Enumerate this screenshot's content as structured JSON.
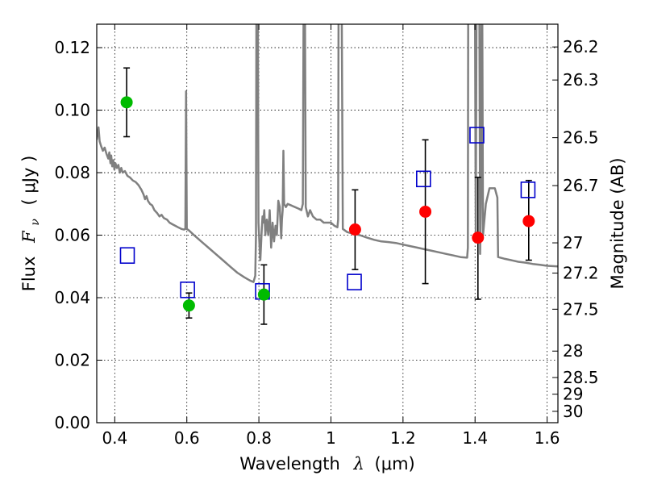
{
  "chart_data": {
    "type": "scatter",
    "title": "",
    "xlabel": "Wavelength  λ (μm)",
    "ylabel": "Flux  F_ν  ( μJy )",
    "ylabel_parts": {
      "prefix": "Flux",
      "symbol": "F",
      "subscript": "ν",
      "unit": "( μJy )"
    },
    "xlabel_parts": {
      "prefix": "Wavelength",
      "symbol": "λ",
      "unit": "(μm)"
    },
    "y2label": "Magnitude (AB)",
    "xlim": [
      0.35,
      1.63
    ],
    "ylim": [
      0.0,
      0.1275
    ],
    "grid": true,
    "x_ticks": [
      {
        "value": 0.4,
        "label": "0.4"
      },
      {
        "value": 0.6,
        "label": "0.6"
      },
      {
        "value": 0.8,
        "label": "0.8"
      },
      {
        "value": 1.0,
        "label": "1"
      },
      {
        "value": 1.2,
        "label": "1.2"
      },
      {
        "value": 1.4,
        "label": "1.4"
      },
      {
        "value": 1.6,
        "label": "1.6"
      }
    ],
    "y_ticks": [
      {
        "value": 0.0,
        "label": "0.00"
      },
      {
        "value": 0.02,
        "label": "0.02"
      },
      {
        "value": 0.04,
        "label": "0.04"
      },
      {
        "value": 0.06,
        "label": "0.06"
      },
      {
        "value": 0.08,
        "label": "0.08"
      },
      {
        "value": 0.1,
        "label": "0.10"
      },
      {
        "value": 0.12,
        "label": "0.12"
      }
    ],
    "y2_ticks": [
      {
        "mag": 26.2,
        "label": "26.2"
      },
      {
        "mag": 26.3,
        "label": "26.3"
      },
      {
        "mag": 26.5,
        "label": "26.5"
      },
      {
        "mag": 26.7,
        "label": "26.7"
      },
      {
        "mag": 27.0,
        "label": "27"
      },
      {
        "mag": 27.2,
        "label": "27.2"
      },
      {
        "mag": 27.5,
        "label": "27.5"
      },
      {
        "mag": 28.0,
        "label": "28"
      },
      {
        "mag": 28.5,
        "label": "28.5"
      },
      {
        "mag": 29.0,
        "label": "29"
      },
      {
        "mag": 30.0,
        "label": "30"
      }
    ],
    "colors": {
      "model": "#808080",
      "green": "#00bb00",
      "red": "#ff0000",
      "blue": "#0000cc",
      "errorbar": "#000000",
      "grid": "#000000"
    },
    "model_spectrum": [
      [
        0.35,
        0.0905
      ],
      [
        0.355,
        0.0945
      ],
      [
        0.358,
        0.09
      ],
      [
        0.362,
        0.0885
      ],
      [
        0.367,
        0.087
      ],
      [
        0.372,
        0.088
      ],
      [
        0.377,
        0.086
      ],
      [
        0.382,
        0.0845
      ],
      [
        0.385,
        0.0865
      ],
      [
        0.388,
        0.083
      ],
      [
        0.39,
        0.0855
      ],
      [
        0.393,
        0.082
      ],
      [
        0.396,
        0.084
      ],
      [
        0.399,
        0.081
      ],
      [
        0.402,
        0.083
      ],
      [
        0.406,
        0.0815
      ],
      [
        0.41,
        0.0825
      ],
      [
        0.414,
        0.08
      ],
      [
        0.418,
        0.0815
      ],
      [
        0.422,
        0.08
      ],
      [
        0.428,
        0.0805
      ],
      [
        0.435,
        0.079
      ],
      [
        0.442,
        0.0785
      ],
      [
        0.45,
        0.0775
      ],
      [
        0.458,
        0.077
      ],
      [
        0.466,
        0.076
      ],
      [
        0.474,
        0.0745
      ],
      [
        0.48,
        0.073
      ],
      [
        0.484,
        0.0715
      ],
      [
        0.488,
        0.0725
      ],
      [
        0.492,
        0.071
      ],
      [
        0.498,
        0.07
      ],
      [
        0.504,
        0.0695
      ],
      [
        0.51,
        0.068
      ],
      [
        0.518,
        0.067
      ],
      [
        0.524,
        0.066
      ],
      [
        0.53,
        0.0665
      ],
      [
        0.536,
        0.0655
      ],
      [
        0.545,
        0.065
      ],
      [
        0.552,
        0.064
      ],
      [
        0.56,
        0.0635
      ],
      [
        0.568,
        0.063
      ],
      [
        0.576,
        0.0625
      ],
      [
        0.585,
        0.062
      ],
      [
        0.592,
        0.0618
      ],
      [
        0.596,
        0.062
      ],
      [
        0.598,
        0.106
      ],
      [
        0.6,
        0.062
      ],
      [
        0.606,
        0.0615
      ],
      [
        0.62,
        0.06
      ],
      [
        0.64,
        0.058
      ],
      [
        0.66,
        0.056
      ],
      [
        0.68,
        0.054
      ],
      [
        0.7,
        0.052
      ],
      [
        0.72,
        0.05
      ],
      [
        0.74,
        0.048
      ],
      [
        0.76,
        0.0465
      ],
      [
        0.775,
        0.0455
      ],
      [
        0.785,
        0.045
      ],
      [
        0.79,
        0.047
      ],
      [
        0.792,
        0.06
      ],
      [
        0.793,
        0.13
      ],
      [
        0.797,
        0.13
      ],
      [
        0.799,
        0.064
      ],
      [
        0.802,
        0.056
      ],
      [
        0.804,
        0.052
      ],
      [
        0.806,
        0.057
      ],
      [
        0.808,
        0.062
      ],
      [
        0.81,
        0.066
      ],
      [
        0.812,
        0.064
      ],
      [
        0.815,
        0.068
      ],
      [
        0.818,
        0.06
      ],
      [
        0.822,
        0.065
      ],
      [
        0.826,
        0.06
      ],
      [
        0.83,
        0.068
      ],
      [
        0.834,
        0.056
      ],
      [
        0.838,
        0.064
      ],
      [
        0.842,
        0.058
      ],
      [
        0.846,
        0.063
      ],
      [
        0.85,
        0.06
      ],
      [
        0.854,
        0.071
      ],
      [
        0.858,
        0.069
      ],
      [
        0.862,
        0.059
      ],
      [
        0.864,
        0.065
      ],
      [
        0.866,
        0.068
      ],
      [
        0.868,
        0.087
      ],
      [
        0.87,
        0.07
      ],
      [
        0.875,
        0.069
      ],
      [
        0.88,
        0.07
      ],
      [
        0.89,
        0.0695
      ],
      [
        0.9,
        0.069
      ],
      [
        0.91,
        0.0685
      ],
      [
        0.918,
        0.068
      ],
      [
        0.922,
        0.07
      ],
      [
        0.924,
        0.13
      ],
      [
        0.928,
        0.13
      ],
      [
        0.93,
        0.069
      ],
      [
        0.936,
        0.066
      ],
      [
        0.942,
        0.068
      ],
      [
        0.95,
        0.066
      ],
      [
        0.96,
        0.065
      ],
      [
        0.97,
        0.065
      ],
      [
        0.98,
        0.064
      ],
      [
        0.99,
        0.064
      ],
      [
        1.0,
        0.064
      ],
      [
        1.01,
        0.063
      ],
      [
        1.018,
        0.0625
      ],
      [
        1.02,
        0.065
      ],
      [
        1.021,
        0.13
      ],
      [
        1.03,
        0.13
      ],
      [
        1.033,
        0.062
      ],
      [
        1.045,
        0.061
      ],
      [
        1.06,
        0.0605
      ],
      [
        1.08,
        0.06
      ],
      [
        1.1,
        0.0592
      ],
      [
        1.12,
        0.0585
      ],
      [
        1.14,
        0.058
      ],
      [
        1.16,
        0.0578
      ],
      [
        1.18,
        0.0575
      ],
      [
        1.2,
        0.057
      ],
      [
        1.22,
        0.0565
      ],
      [
        1.24,
        0.056
      ],
      [
        1.26,
        0.0555
      ],
      [
        1.28,
        0.055
      ],
      [
        1.3,
        0.0545
      ],
      [
        1.32,
        0.054
      ],
      [
        1.34,
        0.0535
      ],
      [
        1.36,
        0.053
      ],
      [
        1.378,
        0.0528
      ],
      [
        1.38,
        0.056
      ],
      [
        1.381,
        0.13
      ],
      [
        1.392,
        0.13
      ],
      [
        1.4,
        0.13
      ],
      [
        1.402,
        0.06
      ],
      [
        1.404,
        0.13
      ],
      [
        1.412,
        0.13
      ],
      [
        1.414,
        0.054
      ],
      [
        1.416,
        0.07
      ],
      [
        1.418,
        0.13
      ],
      [
        1.42,
        0.13
      ],
      [
        1.422,
        0.06
      ],
      [
        1.43,
        0.07
      ],
      [
        1.44,
        0.075
      ],
      [
        1.455,
        0.075
      ],
      [
        1.462,
        0.072
      ],
      [
        1.464,
        0.053
      ],
      [
        1.48,
        0.0525
      ],
      [
        1.5,
        0.052
      ],
      [
        1.52,
        0.0515
      ],
      [
        1.54,
        0.0512
      ],
      [
        1.56,
        0.0508
      ],
      [
        1.58,
        0.0505
      ],
      [
        1.6,
        0.0502
      ],
      [
        1.63,
        0.05
      ]
    ],
    "green_points": [
      {
        "x": 0.433,
        "y": 0.1025,
        "err_low": 0.0915,
        "err_high": 0.1135
      },
      {
        "x": 0.606,
        "y": 0.0375,
        "err_low": 0.0335,
        "err_high": 0.0415
      },
      {
        "x": 0.814,
        "y": 0.041,
        "err_low": 0.0315,
        "err_high": 0.0505
      }
    ],
    "red_points": [
      {
        "x": 1.067,
        "y": 0.0618,
        "err_low": 0.049,
        "err_high": 0.0745
      },
      {
        "x": 1.262,
        "y": 0.0675,
        "err_low": 0.0445,
        "err_high": 0.0905
      },
      {
        "x": 1.408,
        "y": 0.0592,
        "err_low": 0.0395,
        "err_high": 0.0785
      },
      {
        "x": 1.549,
        "y": 0.0645,
        "err_low": 0.052,
        "err_high": 0.0775
      }
    ],
    "model_points": [
      {
        "x": 0.435,
        "y": 0.0535
      },
      {
        "x": 0.602,
        "y": 0.0425
      },
      {
        "x": 0.81,
        "y": 0.042
      },
      {
        "x": 1.065,
        "y": 0.045
      },
      {
        "x": 1.257,
        "y": 0.078
      },
      {
        "x": 1.405,
        "y": 0.092
      },
      {
        "x": 1.547,
        "y": 0.0745
      }
    ]
  }
}
